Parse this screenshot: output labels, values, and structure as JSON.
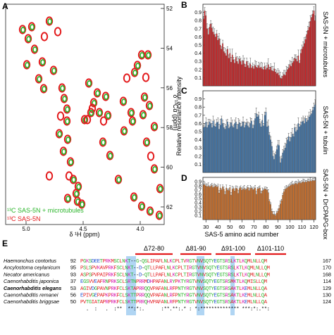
{
  "panel_letters": [
    "A",
    "B",
    "C",
    "D",
    "E"
  ],
  "panel_a": {
    "xlabel": "δ ¹H (ppm)",
    "ylabel": "δ ¹³Cα (ppm)",
    "x_ticks": [
      "5.0",
      "4.5",
      "4.0"
    ],
    "y_ticks": [
      "52",
      "54",
      "56",
      "58",
      "60",
      "62"
    ],
    "legend": [
      "¹³C SAS-5N + microtubules",
      "¹³C SAS-5N"
    ],
    "colors": {
      "green": "#2bb52b",
      "red": "#e31a1c"
    }
  },
  "right_panels": {
    "ylabel": "Relative resonance intensity",
    "xlabel": "SAS-5 amino acid number",
    "x_ticks": [
      "30",
      "40",
      "50",
      "60",
      "70",
      "80",
      "90",
      "100",
      "110",
      "120"
    ],
    "y_ticks": [
      "0.1",
      "0.2",
      "0.3",
      "0.4",
      "0.5",
      "0.6",
      "0.7",
      "0.8",
      "0.9"
    ]
  },
  "chart_data": [
    {
      "type": "bar",
      "panel": "B",
      "label": "SAS-5N + microtubules",
      "color": "#d7191c",
      "x": [
        28,
        29,
        30,
        31,
        32,
        33,
        34,
        35,
        36,
        37,
        38,
        39,
        40,
        41,
        42,
        43,
        44,
        45,
        46,
        47,
        48,
        49,
        50,
        51,
        52,
        53,
        54,
        55,
        56,
        57,
        58,
        59,
        60,
        61,
        62,
        63,
        64,
        65,
        66,
        67,
        68,
        69,
        70,
        71,
        72,
        73,
        74,
        75,
        76,
        77,
        78,
        79,
        80,
        81,
        82,
        83,
        84,
        85,
        86,
        87,
        88,
        89,
        90,
        91,
        92,
        93,
        94,
        95,
        96,
        97,
        98,
        99,
        100,
        101,
        102,
        103,
        104,
        105,
        106,
        107,
        108,
        109,
        110,
        111,
        112,
        113,
        114,
        115,
        116,
        117,
        118,
        119,
        120,
        121
      ],
      "values": [
        0.82,
        0.92,
        0.86,
        0.7,
        0.63,
        0.72,
        0.76,
        0.71,
        0.66,
        0.63,
        0.6,
        0.64,
        0.56,
        0.58,
        0.5,
        0.45,
        0.52,
        0.42,
        0.4,
        0.37,
        0.45,
        0.34,
        0.4,
        0.29,
        0.38,
        0.32,
        0.28,
        0.35,
        0.3,
        0.27,
        0.33,
        0.3,
        0.26,
        0.31,
        0.27,
        0.23,
        0.3,
        0.25,
        0.22,
        0.27,
        0.22,
        0.24,
        0.21,
        0.25,
        0.23,
        0.22,
        0.25,
        0.22,
        0.23,
        0.21,
        0.2,
        0.24,
        0.2,
        0.22,
        0.26,
        0.2,
        0.23,
        0.19,
        0.18,
        0.21,
        0.17,
        0.15,
        0.16,
        0.13,
        0.1,
        0.09,
        0.12,
        0.14,
        0.13,
        0.17,
        0.2,
        0.22,
        0.26,
        0.24,
        0.28,
        0.3,
        0.34,
        0.33,
        0.3,
        0.37,
        0.28,
        0.4,
        0.45,
        0.48,
        0.52,
        0.57,
        0.63,
        0.68,
        0.72,
        0.79,
        0.84,
        0.88,
        0.92,
        0.8
      ],
      "ylim": [
        0,
        1
      ]
    },
    {
      "type": "bar",
      "panel": "C",
      "label": "SAS-5N + tubulin",
      "color": "#3a75b0",
      "x": [
        28,
        29,
        30,
        31,
        32,
        33,
        34,
        35,
        36,
        37,
        38,
        39,
        40,
        41,
        42,
        43,
        44,
        45,
        46,
        47,
        48,
        49,
        50,
        51,
        52,
        53,
        54,
        55,
        56,
        57,
        58,
        59,
        60,
        61,
        62,
        63,
        64,
        65,
        66,
        67,
        68,
        69,
        70,
        71,
        72,
        73,
        74,
        75,
        76,
        77,
        78,
        79,
        80,
        81,
        82,
        83,
        84,
        85,
        86,
        87,
        88,
        89,
        90,
        91,
        92,
        93,
        94,
        95,
        96,
        97,
        98,
        99,
        100,
        101,
        102,
        103,
        104,
        105,
        106,
        107,
        108,
        109,
        110,
        111,
        112,
        113,
        114,
        115,
        116,
        117,
        118,
        119,
        120,
        121
      ],
      "values": [
        0.55,
        0.56,
        0.62,
        0.55,
        0.58,
        0.62,
        0.6,
        0.55,
        0.63,
        0.57,
        0.56,
        0.61,
        0.62,
        0.53,
        0.58,
        0.66,
        0.6,
        0.55,
        0.53,
        0.57,
        0.62,
        0.54,
        0.56,
        0.61,
        0.57,
        0.55,
        0.6,
        0.62,
        0.53,
        0.59,
        0.61,
        0.56,
        0.57,
        0.62,
        0.55,
        0.58,
        0.61,
        0.57,
        0.55,
        0.6,
        0.63,
        0.54,
        0.58,
        0.66,
        0.72,
        0.68,
        0.7,
        0.6,
        0.56,
        0.64,
        0.57,
        0.7,
        0.74,
        0.56,
        0.57,
        0.46,
        0.4,
        0.32,
        0.2,
        0.16,
        0.22,
        0.28,
        0.34,
        0.33,
        0.12,
        0.17,
        0.24,
        0.27,
        0.3,
        0.35,
        0.4,
        0.44,
        0.38,
        0.43,
        0.47,
        0.44,
        0.55,
        0.5,
        0.52,
        0.6,
        0.56,
        0.58,
        0.62,
        0.63,
        0.6,
        0.66,
        0.62,
        0.64,
        0.68,
        0.7,
        0.72,
        0.76,
        0.8,
        0.83
      ],
      "ylim": [
        0,
        1
      ]
    },
    {
      "type": "bar",
      "panel": "D",
      "label": "SAS-5N + DrCPAPG-box",
      "color": "#d96e1d",
      "x": [
        28,
        29,
        30,
        31,
        32,
        33,
        34,
        35,
        36,
        37,
        38,
        39,
        40,
        41,
        42,
        43,
        44,
        45,
        46,
        47,
        48,
        49,
        50,
        51,
        52,
        53,
        54,
        55,
        56,
        57,
        58,
        59,
        60,
        61,
        62,
        63,
        64,
        65,
        66,
        67,
        68,
        69,
        70,
        71,
        72,
        73,
        74,
        75,
        76,
        77,
        78,
        79,
        80,
        81,
        82,
        83,
        84,
        85,
        86,
        87,
        88,
        89,
        90,
        91,
        92,
        93,
        94,
        95,
        96,
        97,
        98,
        99,
        100,
        101,
        102,
        103,
        104,
        105,
        106,
        107,
        108,
        109,
        110,
        111,
        112,
        113,
        114,
        115,
        116,
        117,
        118,
        119,
        120,
        121
      ],
      "values": [
        0.82,
        0.83,
        0.8,
        0.78,
        0.8,
        0.77,
        0.79,
        0.81,
        0.76,
        0.78,
        0.8,
        0.77,
        0.79,
        0.63,
        0.75,
        0.7,
        0.78,
        0.72,
        0.6,
        0.75,
        0.7,
        0.69,
        0.76,
        0.58,
        0.72,
        0.74,
        0.68,
        0.75,
        0.73,
        0.62,
        0.74,
        0.76,
        0.7,
        0.72,
        0.74,
        0.7,
        0.73,
        0.76,
        0.69,
        0.74,
        0.75,
        0.71,
        0.72,
        0.75,
        0.6,
        0.73,
        0.74,
        0.75,
        0.62,
        0.68,
        0.7,
        0.73,
        0.72,
        0.7,
        0.64,
        0.44,
        0.36,
        0.2,
        0.13,
        0.12,
        0.1,
        0.16,
        0.2,
        0.27,
        0.37,
        0.45,
        0.58,
        0.66,
        0.72,
        0.74,
        0.76,
        0.78,
        0.8,
        0.82,
        0.84,
        0.82,
        0.85,
        0.86,
        0.84,
        0.87,
        0.88,
        0.86,
        0.88,
        0.9,
        0.88,
        0.9,
        0.89,
        0.91,
        0.9,
        0.92,
        0.91,
        0.93,
        0.92,
        0.93
      ],
      "ylim": [
        0,
        1
      ]
    }
  ],
  "panel_e": {
    "deletions": [
      "Δ72-80",
      "Δ81-90",
      "Δ91-100",
      "Δ101-110"
    ],
    "rows": [
      {
        "species": "Haemonchus contortus",
        "start": "92",
        "seq": "PGKSDEETPRKMSCLNKT--G-QSLIPAFLNLKCPLTVRGTVNVSQTYEGTSRSLKTLKQMLNLLQM",
        "end": "167",
        "bold": false
      },
      {
        "species": "Ancylostoma ceylanicum",
        "start": "95",
        "seq": "PSLSPVKAVPRKFSCLNKT--D-QTLLPAFLNLKCPLTIRGTVNVSQTYEGTSRSLKTLKQMLNLLQM",
        "end": "170",
        "bold": false
      },
      {
        "species": "Necator americanus",
        "start": "93",
        "seq": "ASPSPVPAIPRKFSCLNKT--D-QTLLPAFLNLKCPLTIRGTVNVSQTYEGTSRSLKTLKQMLNLLQM",
        "end": "168",
        "bold": false
      },
      {
        "species": "Caenorhabditis japonica",
        "start": "37",
        "seq": "EGSVVEAFRNPRKSCLSRTNPRRMDHPAFANLRYPKTYRGTVNVSQTYEGTSRSMKTLKQMISLLQM",
        "end": "114",
        "bold": false
      },
      {
        "species": "Caenorhabditis elegans",
        "start": "53",
        "seq": "AGIVDGPAVNPRKFCLSKTAPRRQQVPAFANLRFPNTYRGTVNVSQTYEGTSRSAKTLKEMLNLLQA",
        "end": "129",
        "bold": true
      },
      {
        "species": "Caenorhabditis remanei",
        "start": "56",
        "seq": "EPIVGEPAPKPRKFCLSKTTPRRQQVPAFANLRFPNTYRGTVNVSQTYEGTSRSAKTLKEMLNLLQA",
        "end": "130",
        "bold": false
      },
      {
        "species": "Caenorhabditis briggsae",
        "start": "50",
        "seq": "PVTGIATAPRPRKFCLSKTTPRRQHVPAFANLRFPNTYRGTVNVSQTYEGTSRSAKTLKEMLNLLQA",
        "end": "124",
        "bold": false
      }
    ],
    "consensus": "  .  :   .  :**  **:*:.      :**.**:.* : *:************** ***:*:.**:"
  }
}
